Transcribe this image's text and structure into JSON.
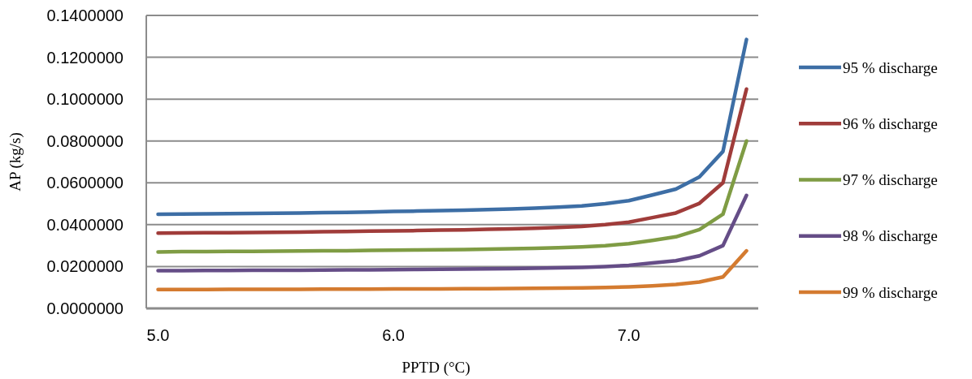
{
  "chart_data": {
    "type": "line",
    "xlabel": "PPTD (°C)",
    "ylabel": "AP (kg/s)",
    "x": [
      5.0,
      5.1,
      5.2,
      5.3,
      5.4,
      5.5,
      5.6,
      5.7,
      5.8,
      5.9,
      6.0,
      6.1,
      6.2,
      6.3,
      6.4,
      6.5,
      6.6,
      6.7,
      6.8,
      6.9,
      7.0,
      7.1,
      7.2,
      7.3,
      7.4,
      7.5
    ],
    "series": [
      {
        "name": "95 % discharge",
        "color": "#3d6ea5",
        "values": [
          0.045,
          0.0451,
          0.0452,
          0.0453,
          0.0454,
          0.0455,
          0.0456,
          0.0458,
          0.0459,
          0.0461,
          0.0463,
          0.0465,
          0.0467,
          0.0469,
          0.0472,
          0.0475,
          0.0479,
          0.0484,
          0.049,
          0.05,
          0.0515,
          0.0542,
          0.057,
          0.0628,
          0.075,
          0.1285
        ]
      },
      {
        "name": "96 % discharge",
        "color": "#a03c3a",
        "values": [
          0.036,
          0.0361,
          0.0362,
          0.0362,
          0.0363,
          0.0364,
          0.0365,
          0.0366,
          0.0367,
          0.0369,
          0.037,
          0.0372,
          0.0374,
          0.0375,
          0.0378,
          0.038,
          0.0383,
          0.0387,
          0.0392,
          0.04,
          0.0412,
          0.0434,
          0.0456,
          0.0502,
          0.06,
          0.1048
        ]
      },
      {
        "name": "97 % discharge",
        "color": "#7f9c44",
        "values": [
          0.027,
          0.0271,
          0.0271,
          0.0272,
          0.0272,
          0.0273,
          0.0274,
          0.0275,
          0.0275,
          0.0277,
          0.0278,
          0.0279,
          0.028,
          0.0281,
          0.0283,
          0.0285,
          0.0287,
          0.029,
          0.0294,
          0.03,
          0.0309,
          0.0325,
          0.0342,
          0.0377,
          0.045,
          0.08
        ]
      },
      {
        "name": "98 % discharge",
        "color": "#654d87",
        "values": [
          0.018,
          0.018,
          0.0181,
          0.0181,
          0.0182,
          0.0182,
          0.0182,
          0.0183,
          0.0184,
          0.0184,
          0.0185,
          0.0186,
          0.0187,
          0.0188,
          0.0189,
          0.019,
          0.0192,
          0.0194,
          0.0196,
          0.02,
          0.0206,
          0.0217,
          0.0228,
          0.0251,
          0.03,
          0.054
        ]
      },
      {
        "name": "99 % discharge",
        "color": "#d47b30",
        "values": [
          0.009,
          0.009,
          0.009,
          0.0091,
          0.0091,
          0.0091,
          0.0091,
          0.0092,
          0.0092,
          0.0092,
          0.0093,
          0.0093,
          0.0093,
          0.0094,
          0.0094,
          0.0095,
          0.0096,
          0.0097,
          0.0098,
          0.01,
          0.0103,
          0.0108,
          0.0114,
          0.0126,
          0.015,
          0.0275
        ]
      }
    ],
    "xlim": [
      4.95,
      7.55
    ],
    "xticks": [
      {
        "value": 5,
        "label": "5.0"
      },
      {
        "value": 6,
        "label": "6.0"
      },
      {
        "value": 7,
        "label": "7.0"
      }
    ],
    "ylim": [
      0,
      0.14
    ],
    "yticks": [
      {
        "value": 0,
        "label": "0.0000000"
      },
      {
        "value": 0.02,
        "label": "0.0200000"
      },
      {
        "value": 0.04,
        "label": "0.0400000"
      },
      {
        "value": 0.06,
        "label": "0.0600000"
      },
      {
        "value": 0.08,
        "label": "0.0800000"
      },
      {
        "value": 0.1,
        "label": "0.1000000"
      },
      {
        "value": 0.12,
        "label": "0.1200000"
      },
      {
        "value": 0.14,
        "label": "0.1400000"
      }
    ],
    "grid": "y",
    "legend": "right",
    "marker": "none",
    "line_style": "solid"
  }
}
